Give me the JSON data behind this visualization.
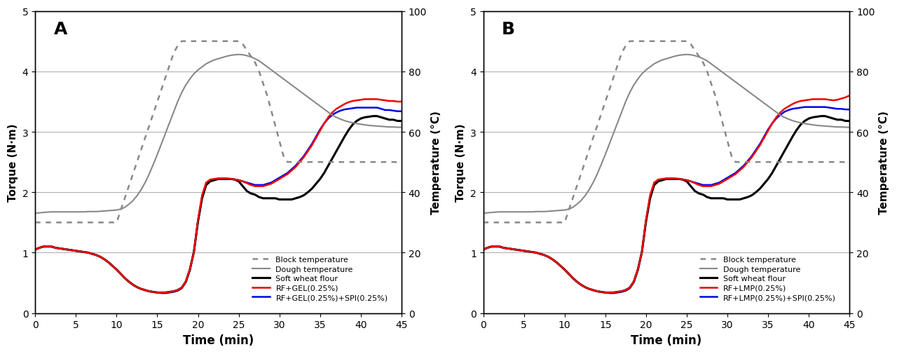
{
  "time": [
    0,
    0.5,
    1,
    1.5,
    2,
    2.5,
    3,
    3.5,
    4,
    4.5,
    5,
    5.5,
    6,
    6.5,
    7,
    7.5,
    8,
    8.5,
    9,
    9.5,
    10,
    10.5,
    11,
    11.5,
    12,
    12.5,
    13,
    13.5,
    14,
    14.5,
    15,
    15.5,
    16,
    16.5,
    17,
    17.5,
    18,
    18.5,
    19,
    19.5,
    20,
    20.5,
    21,
    21.5,
    22,
    22.5,
    23,
    23.5,
    24,
    24.5,
    25,
    25.5,
    26,
    26.5,
    27,
    27.5,
    28,
    28.5,
    29,
    29.5,
    30,
    30.5,
    31,
    31.5,
    32,
    32.5,
    33,
    33.5,
    34,
    34.5,
    35,
    35.5,
    36,
    36.5,
    37,
    37.5,
    38,
    38.5,
    39,
    39.5,
    40,
    40.5,
    41,
    41.5,
    42,
    42.5,
    43,
    43.5,
    44,
    44.5,
    45
  ],
  "block_temp": [
    30,
    30,
    30,
    30,
    30,
    30,
    30,
    30,
    30,
    30,
    30,
    30,
    30,
    30,
    30,
    30,
    30,
    30,
    30,
    30,
    30,
    34,
    38,
    42,
    46,
    50,
    54,
    58,
    62,
    66,
    70,
    74,
    78,
    82,
    86,
    88.5,
    90,
    90,
    90,
    90,
    90,
    90,
    90,
    90,
    90,
    90,
    90,
    90,
    90,
    90,
    90,
    89,
    87,
    85,
    83,
    80,
    76,
    72,
    67,
    62,
    57,
    52,
    50,
    50,
    50,
    50,
    50,
    50,
    50,
    50,
    50,
    50,
    50,
    50,
    50,
    50,
    50,
    50,
    50,
    50,
    50,
    50,
    50,
    50,
    50,
    50,
    50,
    50,
    50,
    50,
    50
  ],
  "dough_temp": [
    33,
    33.2,
    33.3,
    33.4,
    33.5,
    33.5,
    33.5,
    33.5,
    33.5,
    33.5,
    33.5,
    33.5,
    33.5,
    33.6,
    33.6,
    33.6,
    33.7,
    33.8,
    33.9,
    34.0,
    34.1,
    34.4,
    35,
    36,
    37.2,
    38.8,
    40.8,
    43.2,
    46,
    49.2,
    52.5,
    56,
    59.5,
    63,
    66.5,
    70,
    73,
    75.5,
    77.5,
    79.2,
    80.5,
    81.5,
    82.5,
    83.2,
    83.8,
    84.2,
    84.6,
    85.0,
    85.3,
    85.5,
    85.6,
    85.5,
    85.2,
    84.8,
    84.2,
    83.5,
    82.5,
    81.5,
    80.5,
    79.5,
    78.5,
    77.5,
    76.5,
    75.5,
    74.5,
    73.5,
    72.5,
    71.5,
    70.5,
    69.5,
    68.5,
    67.5,
    66.5,
    65.5,
    64.8,
    64.2,
    63.7,
    63.3,
    63.0,
    62.7,
    62.5,
    62.3,
    62.1,
    62,
    61.9,
    61.8,
    61.7,
    61.6,
    61.6,
    61.5,
    61.5
  ],
  "soft_wheat_A": [
    1.05,
    1.08,
    1.1,
    1.1,
    1.1,
    1.08,
    1.07,
    1.06,
    1.05,
    1.04,
    1.03,
    1.02,
    1.01,
    1.0,
    0.98,
    0.96,
    0.93,
    0.89,
    0.84,
    0.78,
    0.72,
    0.65,
    0.58,
    0.52,
    0.47,
    0.43,
    0.4,
    0.38,
    0.36,
    0.35,
    0.34,
    0.34,
    0.34,
    0.35,
    0.36,
    0.38,
    0.42,
    0.52,
    0.72,
    1.02,
    1.52,
    1.9,
    2.12,
    2.18,
    2.2,
    2.22,
    2.22,
    2.22,
    2.22,
    2.21,
    2.18,
    2.1,
    2.02,
    1.98,
    1.96,
    1.92,
    1.9,
    1.9,
    1.9,
    1.9,
    1.88,
    1.88,
    1.88,
    1.88,
    1.9,
    1.92,
    1.95,
    2.0,
    2.06,
    2.14,
    2.22,
    2.32,
    2.44,
    2.56,
    2.68,
    2.8,
    2.92,
    3.03,
    3.12,
    3.18,
    3.22,
    3.24,
    3.25,
    3.26,
    3.26,
    3.24,
    3.22,
    3.2,
    3.2,
    3.18,
    3.18
  ],
  "rf_gel_A": [
    1.05,
    1.08,
    1.1,
    1.1,
    1.1,
    1.08,
    1.07,
    1.06,
    1.05,
    1.04,
    1.03,
    1.02,
    1.01,
    1.0,
    0.98,
    0.96,
    0.93,
    0.89,
    0.84,
    0.78,
    0.72,
    0.65,
    0.58,
    0.52,
    0.47,
    0.43,
    0.4,
    0.38,
    0.36,
    0.35,
    0.34,
    0.34,
    0.34,
    0.35,
    0.36,
    0.38,
    0.42,
    0.52,
    0.72,
    1.02,
    1.55,
    1.95,
    2.16,
    2.21,
    2.22,
    2.23,
    2.23,
    2.23,
    2.22,
    2.21,
    2.2,
    2.18,
    2.15,
    2.12,
    2.1,
    2.1,
    2.1,
    2.12,
    2.14,
    2.18,
    2.22,
    2.26,
    2.3,
    2.36,
    2.42,
    2.5,
    2.58,
    2.68,
    2.78,
    2.9,
    3.02,
    3.14,
    3.24,
    3.32,
    3.38,
    3.42,
    3.46,
    3.49,
    3.51,
    3.52,
    3.53,
    3.54,
    3.54,
    3.54,
    3.54,
    3.53,
    3.52,
    3.51,
    3.51,
    3.5,
    3.5
  ],
  "rf_gel_spi_A": [
    1.05,
    1.08,
    1.1,
    1.1,
    1.1,
    1.08,
    1.07,
    1.06,
    1.05,
    1.04,
    1.03,
    1.02,
    1.01,
    1.0,
    0.98,
    0.96,
    0.93,
    0.89,
    0.84,
    0.78,
    0.72,
    0.65,
    0.58,
    0.52,
    0.47,
    0.43,
    0.4,
    0.38,
    0.36,
    0.35,
    0.34,
    0.33,
    0.33,
    0.34,
    0.35,
    0.37,
    0.41,
    0.51,
    0.71,
    1.01,
    1.52,
    1.92,
    2.14,
    2.2,
    2.21,
    2.22,
    2.22,
    2.22,
    2.22,
    2.21,
    2.2,
    2.18,
    2.16,
    2.14,
    2.12,
    2.12,
    2.12,
    2.14,
    2.16,
    2.2,
    2.24,
    2.28,
    2.32,
    2.38,
    2.44,
    2.52,
    2.6,
    2.7,
    2.8,
    2.92,
    3.04,
    3.14,
    3.22,
    3.28,
    3.32,
    3.35,
    3.37,
    3.38,
    3.39,
    3.4,
    3.4,
    3.4,
    3.4,
    3.4,
    3.4,
    3.38,
    3.36,
    3.36,
    3.35,
    3.34,
    3.34
  ],
  "soft_wheat_B": [
    1.05,
    1.08,
    1.1,
    1.1,
    1.1,
    1.08,
    1.07,
    1.06,
    1.05,
    1.04,
    1.03,
    1.02,
    1.01,
    1.0,
    0.98,
    0.96,
    0.93,
    0.89,
    0.84,
    0.78,
    0.72,
    0.65,
    0.58,
    0.52,
    0.47,
    0.43,
    0.4,
    0.38,
    0.36,
    0.35,
    0.34,
    0.34,
    0.34,
    0.35,
    0.36,
    0.38,
    0.42,
    0.52,
    0.72,
    1.02,
    1.52,
    1.9,
    2.12,
    2.18,
    2.2,
    2.22,
    2.22,
    2.22,
    2.22,
    2.21,
    2.18,
    2.1,
    2.02,
    1.98,
    1.96,
    1.92,
    1.9,
    1.9,
    1.9,
    1.9,
    1.88,
    1.88,
    1.88,
    1.88,
    1.9,
    1.92,
    1.95,
    2.0,
    2.06,
    2.14,
    2.22,
    2.32,
    2.44,
    2.56,
    2.68,
    2.8,
    2.92,
    3.03,
    3.12,
    3.18,
    3.22,
    3.24,
    3.25,
    3.26,
    3.26,
    3.24,
    3.22,
    3.2,
    3.2,
    3.18,
    3.18
  ],
  "rf_lmp_B": [
    1.05,
    1.08,
    1.1,
    1.1,
    1.1,
    1.08,
    1.07,
    1.06,
    1.05,
    1.04,
    1.03,
    1.02,
    1.01,
    1.0,
    0.98,
    0.96,
    0.93,
    0.89,
    0.84,
    0.78,
    0.72,
    0.65,
    0.58,
    0.52,
    0.47,
    0.43,
    0.4,
    0.38,
    0.36,
    0.35,
    0.34,
    0.34,
    0.34,
    0.35,
    0.36,
    0.38,
    0.42,
    0.52,
    0.72,
    1.02,
    1.55,
    1.95,
    2.16,
    2.21,
    2.22,
    2.23,
    2.23,
    2.23,
    2.22,
    2.21,
    2.2,
    2.18,
    2.15,
    2.12,
    2.1,
    2.1,
    2.1,
    2.12,
    2.14,
    2.18,
    2.22,
    2.26,
    2.3,
    2.36,
    2.42,
    2.5,
    2.58,
    2.68,
    2.78,
    2.9,
    3.02,
    3.14,
    3.24,
    3.32,
    3.38,
    3.42,
    3.46,
    3.49,
    3.51,
    3.52,
    3.53,
    3.54,
    3.54,
    3.54,
    3.54,
    3.53,
    3.52,
    3.53,
    3.55,
    3.57,
    3.6
  ],
  "rf_lmp_spi_B": [
    1.05,
    1.08,
    1.1,
    1.1,
    1.1,
    1.08,
    1.07,
    1.06,
    1.05,
    1.04,
    1.03,
    1.02,
    1.01,
    1.0,
    0.98,
    0.96,
    0.93,
    0.89,
    0.84,
    0.78,
    0.72,
    0.65,
    0.58,
    0.52,
    0.47,
    0.43,
    0.4,
    0.38,
    0.36,
    0.35,
    0.34,
    0.33,
    0.33,
    0.34,
    0.35,
    0.37,
    0.41,
    0.51,
    0.71,
    1.01,
    1.52,
    1.92,
    2.14,
    2.2,
    2.21,
    2.22,
    2.22,
    2.22,
    2.22,
    2.21,
    2.2,
    2.18,
    2.16,
    2.14,
    2.12,
    2.12,
    2.12,
    2.14,
    2.16,
    2.2,
    2.24,
    2.28,
    2.32,
    2.38,
    2.44,
    2.52,
    2.6,
    2.7,
    2.8,
    2.92,
    3.04,
    3.14,
    3.22,
    3.28,
    3.33,
    3.36,
    3.38,
    3.39,
    3.4,
    3.41,
    3.41,
    3.41,
    3.41,
    3.41,
    3.41,
    3.4,
    3.39,
    3.38,
    3.38,
    3.37,
    3.37
  ],
  "legend_A": [
    "Block temperature",
    "Dough temperature",
    "Soft wheat flour",
    "RF+GEL(0.25%)",
    "RF+GEL(0.25%)+SPI(0.25%)"
  ],
  "legend_B": [
    "Block temperature",
    "Dough temperature",
    "Soft wheat flour",
    "RF+LMP(0.25%)",
    "RF+LMP(0.25%)+SPI(0.25%)"
  ],
  "panel_labels": [
    "A",
    "B"
  ],
  "xlabel": "Time (min)",
  "ylabel_left": "Torque (N·m)",
  "ylabel_right": "Temperature (°C)",
  "xlim": [
    0,
    45
  ],
  "ylim_left": [
    0,
    5
  ],
  "ylim_right": [
    0,
    100
  ],
  "xticks": [
    0,
    5,
    10,
    15,
    20,
    25,
    30,
    35,
    40,
    45
  ],
  "yticks_left": [
    0,
    1,
    2,
    3,
    4,
    5
  ],
  "yticks_right": [
    0,
    20,
    40,
    60,
    80,
    100
  ],
  "color_block": "#888888",
  "color_dough": "#888888",
  "color_soft": "#000000",
  "color_red": "#ee0000",
  "color_blue": "#0000ee"
}
